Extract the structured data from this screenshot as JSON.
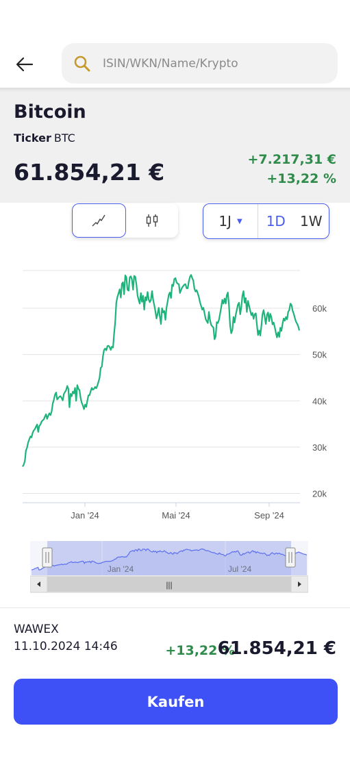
{
  "search": {
    "placeholder": "ISIN/WKN/Name/Krypto"
  },
  "icons": {
    "back": "arrow-left-icon",
    "search": "search-icon",
    "line_chart": "line-chart-icon",
    "candle_chart": "candlestick-icon"
  },
  "instrument": {
    "name": "Bitcoin",
    "ticker_label": "Ticker",
    "ticker": "BTC",
    "price": "61.854,21 €",
    "change_abs": "+7.217,31 €",
    "change_pct": "+13,22 %"
  },
  "range": {
    "selected": "1J",
    "options": [
      "1D",
      "1W"
    ],
    "active_option": "1D"
  },
  "colors": {
    "accent": "#3e51f7",
    "positive": "#2e8b4a",
    "line": "#1db37b"
  },
  "chart_data": {
    "type": "line",
    "x_ticks": [
      "Jan '24",
      "Mai '24",
      "Sep '24"
    ],
    "y_ticks": [
      "20k",
      "30k",
      "40k",
      "50k",
      "60k"
    ],
    "ylim": [
      18000,
      68000
    ],
    "grid": true,
    "series": [
      {
        "values": [
          25800,
          26200,
          27000,
          29300,
          29900,
          31000,
          31700,
          32300,
          32100,
          33100,
          33600,
          33900,
          34400,
          34900,
          33300,
          34600,
          34900,
          35500,
          35800,
          36000,
          36600,
          37100,
          36100,
          36800,
          37300,
          36900,
          37700,
          39400,
          40200,
          41300,
          41800,
          40300,
          40600,
          40900,
          41000,
          40600,
          40100,
          41500,
          41900,
          42300,
          43200,
          42600,
          38600,
          41500,
          41000,
          42000,
          41600,
          42800,
          40000,
          43400,
          42600,
          42300,
          40600,
          39600,
          39000,
          38200,
          39200,
          38700,
          40000,
          41200,
          41200,
          42100,
          42800,
          42400,
          42600,
          43000,
          42700,
          43300,
          44100,
          45000,
          47100,
          47400,
          49600,
          51000,
          51300,
          50900,
          51800,
          51900,
          51600,
          51000,
          51700,
          51500,
          54500,
          57000,
          61200,
          62500,
          63200,
          64100,
          62300,
          65300,
          65600,
          63000,
          67100,
          66700,
          64000,
          63800,
          66700,
          66900,
          66200,
          64000,
          67000,
          66800,
          65100,
          62800,
          61800,
          61000,
          63300,
          61400,
          62700,
          59700,
          62400,
          61700,
          63500,
          61900,
          61300,
          61800,
          63700,
          61800,
          60700,
          59300,
          57800,
          58800,
          60100,
          58200,
          56600,
          60000,
          59100,
          59400,
          57500,
          60100,
          61500,
          62900,
          63400,
          62200,
          65100,
          64800,
          66300,
          66500,
          65600,
          65300,
          65200,
          63300,
          63900,
          64500,
          64800,
          65100,
          65200,
          64300,
          64300,
          65800,
          66800,
          67200,
          66500,
          66000,
          64200,
          63600,
          63900,
          63200,
          62400,
          61300,
          60500,
          59700,
          60100,
          59000,
          57700,
          57200,
          56800,
          59200,
          57400,
          56400,
          56100,
          55800,
          53300,
          53900,
          57000,
          56800,
          57500,
          58800,
          60200,
          61800,
          61000,
          62100,
          61000,
          62800,
          63400,
          60400,
          56200,
          54600,
          55300,
          58100,
          56900,
          58500,
          59700,
          60800,
          61200,
          58700,
          60200,
          62700,
          63700,
          61200,
          62200,
          59200,
          61600,
          60500,
          59500,
          58500,
          59000,
          57700,
          58700,
          58900,
          56400,
          54200,
          55200,
          54100,
          56100,
          58700,
          59600,
          58100,
          56600,
          58600,
          59100,
          57200,
          58800,
          58000,
          56500,
          56900,
          55900,
          54700,
          53700,
          54800,
          53800,
          55800,
          55100,
          56700,
          57800,
          57300,
          58100,
          57600,
          59200,
          59600,
          61000,
          60700,
          59500,
          58800,
          57900,
          57100,
          56700,
          56100,
          55200
        ]
      }
    ]
  },
  "navigator": {
    "x_ticks": [
      "Jan '24",
      "Jul '24"
    ],
    "scroll_thumb": "|||"
  },
  "quote": {
    "exchange": "WAWEX",
    "datetime": "11.10.2024 14:46",
    "change_pct": "+13,22 %",
    "price": "61.854,21 €"
  },
  "buy": {
    "label": "Kaufen"
  }
}
